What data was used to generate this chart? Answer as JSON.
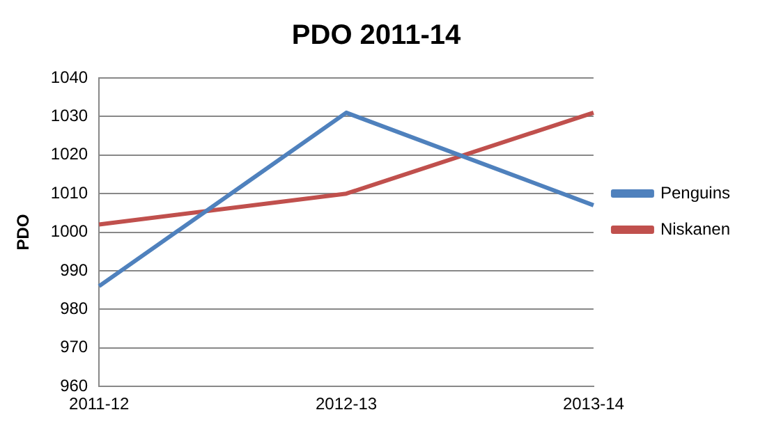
{
  "chart_data": {
    "type": "line",
    "title": "PDO 2011-14",
    "ylabel": "PDO",
    "categories": [
      "2011-12",
      "2012-13",
      "2013-14"
    ],
    "series": [
      {
        "name": "Penguins",
        "color": "#4f81bd",
        "values": [
          986,
          1031,
          1007
        ]
      },
      {
        "name": "Niskanen",
        "color": "#c0504d",
        "values": [
          1002,
          1010,
          1031
        ]
      }
    ],
    "ylim": [
      960,
      1040
    ],
    "yticks": [
      960,
      970,
      980,
      990,
      1000,
      1010,
      1020,
      1030,
      1040
    ],
    "grid": "y",
    "legend": "right",
    "marker": "none",
    "line_style": "solid"
  }
}
